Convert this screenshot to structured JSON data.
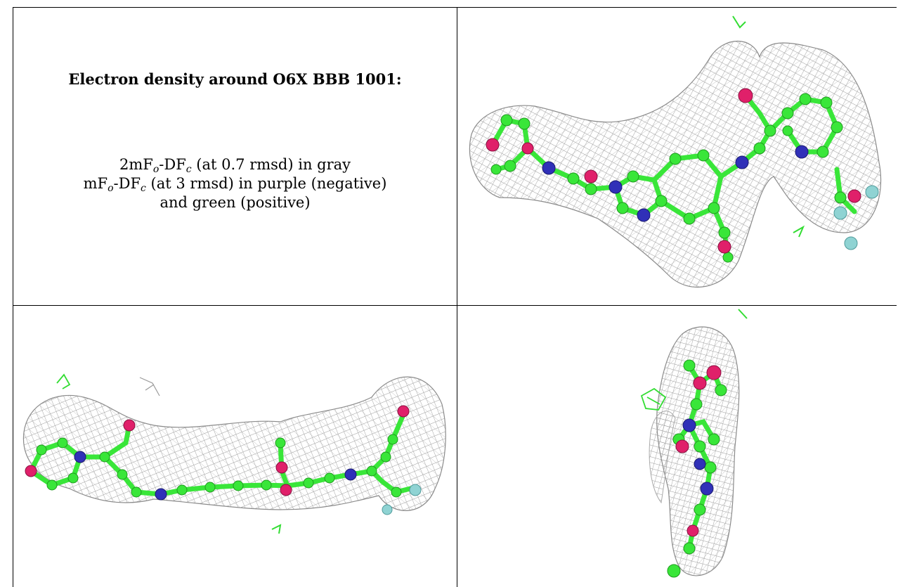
{
  "caption": {
    "title": "Electron density around O6X BBB 1001:",
    "line1": {
      "prefix": "2mF",
      "sub1": "o",
      "mid": "-DF",
      "sub2": "c",
      "suffix": " (at 0.7 rmsd) in gray"
    },
    "line2": {
      "prefix": "mF",
      "sub1": "o",
      "mid": "-DF",
      "sub2": "c",
      "suffix": " (at 3 rmsd) in purple (negative)"
    },
    "line3": "and green (positive)"
  },
  "colors": {
    "mesh": "#9a9a9a",
    "carbon": "#39e639",
    "nitrogen": "#3030b8",
    "oxygen": "#e0206a",
    "fluorine": "#8fd3d3",
    "positive_density": "#33dd33"
  },
  "panels": [
    {
      "id": "view-top-right",
      "icon": "density-mesh-molecule"
    },
    {
      "id": "view-bottom-left",
      "icon": "density-mesh-molecule"
    },
    {
      "id": "view-bottom-right",
      "icon": "density-mesh-molecule-end-on"
    }
  ]
}
